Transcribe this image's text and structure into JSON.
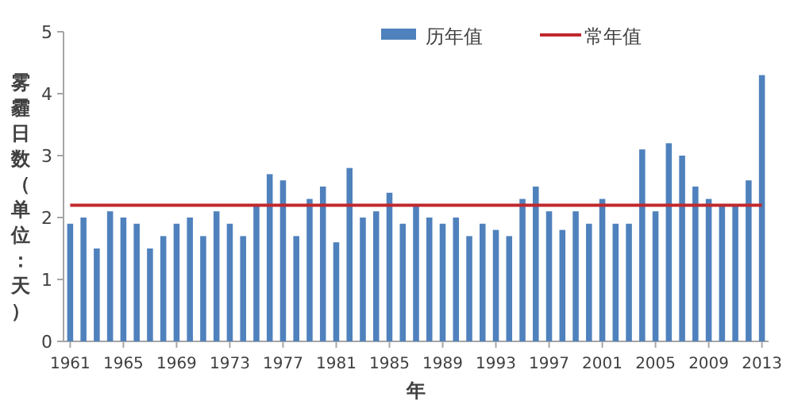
{
  "chart_data": {
    "type": "bar",
    "xlabel": "年",
    "ylabel": "雾霾日数（单位：天）",
    "x": [
      1961,
      1962,
      1963,
      1964,
      1965,
      1966,
      1967,
      1968,
      1969,
      1970,
      1971,
      1972,
      1973,
      1974,
      1975,
      1976,
      1977,
      1978,
      1979,
      1980,
      1981,
      1982,
      1983,
      1984,
      1985,
      1986,
      1987,
      1988,
      1989,
      1990,
      1991,
      1992,
      1993,
      1994,
      1995,
      1996,
      1997,
      1998,
      1999,
      2000,
      2001,
      2002,
      2003,
      2004,
      2005,
      2006,
      2007,
      2008,
      2009,
      2010,
      2011,
      2012,
      2013
    ],
    "series": [
      {
        "name": "历年值",
        "color": "#4f81bd",
        "values": [
          1.9,
          2.0,
          1.5,
          2.1,
          2.0,
          1.9,
          1.5,
          1.7,
          1.9,
          2.0,
          1.7,
          2.1,
          1.9,
          1.7,
          2.2,
          2.7,
          2.6,
          1.7,
          2.3,
          2.5,
          1.6,
          2.8,
          2.0,
          2.1,
          2.4,
          1.9,
          2.2,
          2.0,
          1.9,
          2.0,
          1.7,
          1.9,
          1.8,
          1.7,
          2.3,
          2.5,
          2.1,
          1.8,
          2.1,
          1.9,
          2.3,
          1.9,
          1.9,
          3.1,
          2.1,
          3.2,
          3.0,
          2.5,
          2.3,
          2.2,
          2.2,
          2.6,
          4.3
        ]
      },
      {
        "name": "常年值",
        "type": "line",
        "color": "#c0282d",
        "values": [
          2.2,
          2.2,
          2.2,
          2.2,
          2.2,
          2.2,
          2.2,
          2.2,
          2.2,
          2.2,
          2.2,
          2.2,
          2.2,
          2.2,
          2.2,
          2.2,
          2.2,
          2.2,
          2.2,
          2.2,
          2.2,
          2.2,
          2.2,
          2.2,
          2.2,
          2.2,
          2.2,
          2.2,
          2.2,
          2.2,
          2.2,
          2.2,
          2.2,
          2.2,
          2.2,
          2.2,
          2.2,
          2.2,
          2.2,
          2.2,
          2.2,
          2.2,
          2.2,
          2.2,
          2.2,
          2.2,
          2.2,
          2.2,
          2.2,
          2.2,
          2.2,
          2.2,
          2.2
        ]
      }
    ],
    "xlim": [
      1960.5,
      2013.5
    ],
    "xticks": [
      1961,
      1965,
      1969,
      1973,
      1977,
      1981,
      1985,
      1989,
      1993,
      1997,
      2001,
      2005,
      2009,
      2013
    ],
    "ylim": [
      0,
      5
    ],
    "yticks": [
      0,
      1,
      2,
      3,
      4,
      5
    ],
    "grid": false,
    "legend": "top right",
    "marker": "none",
    "line_style": "solid"
  }
}
